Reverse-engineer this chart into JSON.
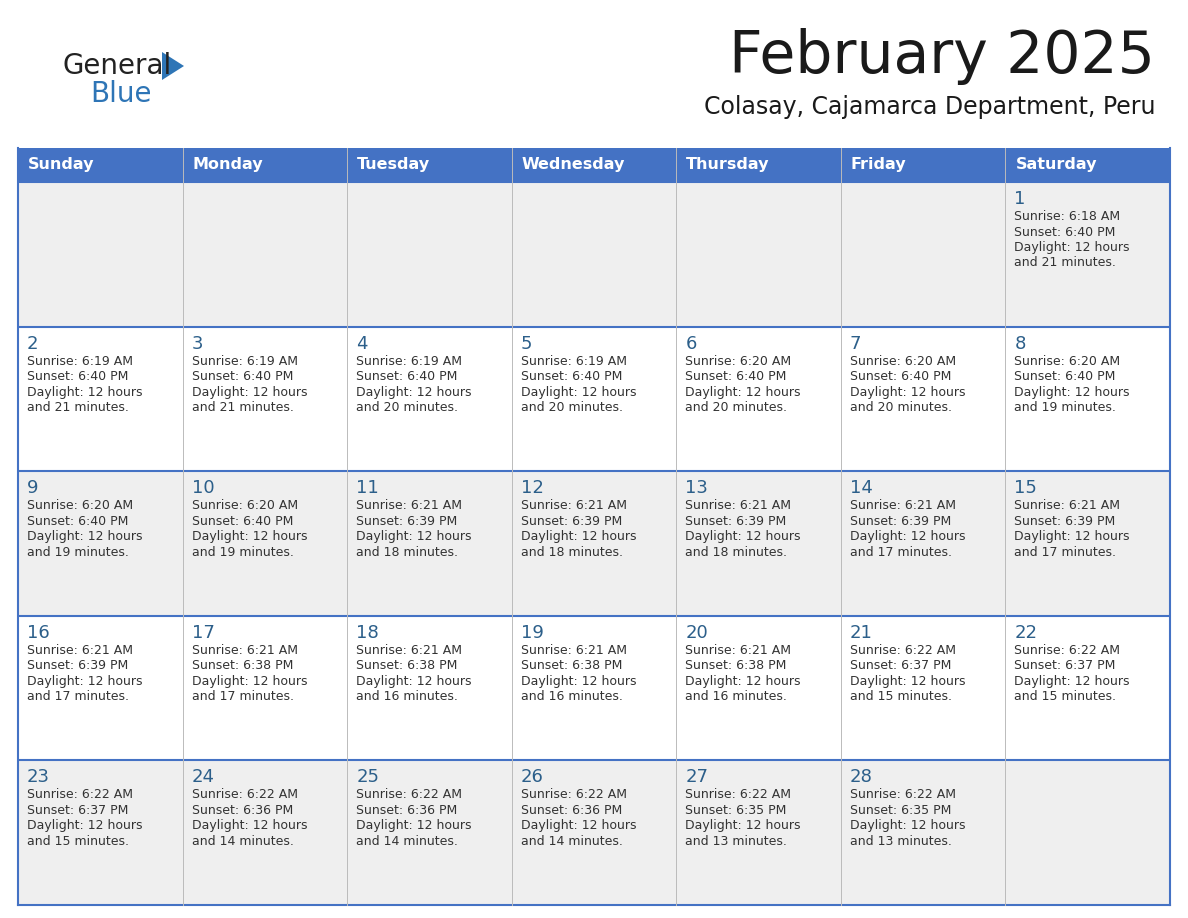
{
  "title": "February 2025",
  "subtitle": "Colasay, Cajamarca Department, Peru",
  "header_bg": "#4472C4",
  "header_text_color": "#FFFFFF",
  "cell_bg_odd": "#EFEFEF",
  "cell_bg_even": "#FFFFFF",
  "border_color": "#4472C4",
  "day_headers": [
    "Sunday",
    "Monday",
    "Tuesday",
    "Wednesday",
    "Thursday",
    "Friday",
    "Saturday"
  ],
  "title_color": "#1a1a1a",
  "subtitle_color": "#1a1a1a",
  "logo_general_color": "#222222",
  "logo_blue_color": "#2E75B6",
  "day_number_color": "#2c5f8a",
  "cell_text_color": "#333333",
  "calendar": [
    [
      null,
      null,
      null,
      null,
      null,
      null,
      {
        "day": 1,
        "sunrise": "6:18 AM",
        "sunset": "6:40 PM",
        "daylight": "12 hours",
        "daylight2": "and 21 minutes."
      }
    ],
    [
      {
        "day": 2,
        "sunrise": "6:19 AM",
        "sunset": "6:40 PM",
        "daylight": "12 hours",
        "daylight2": "and 21 minutes."
      },
      {
        "day": 3,
        "sunrise": "6:19 AM",
        "sunset": "6:40 PM",
        "daylight": "12 hours",
        "daylight2": "and 21 minutes."
      },
      {
        "day": 4,
        "sunrise": "6:19 AM",
        "sunset": "6:40 PM",
        "daylight": "12 hours",
        "daylight2": "and 20 minutes."
      },
      {
        "day": 5,
        "sunrise": "6:19 AM",
        "sunset": "6:40 PM",
        "daylight": "12 hours",
        "daylight2": "and 20 minutes."
      },
      {
        "day": 6,
        "sunrise": "6:20 AM",
        "sunset": "6:40 PM",
        "daylight": "12 hours",
        "daylight2": "and 20 minutes."
      },
      {
        "day": 7,
        "sunrise": "6:20 AM",
        "sunset": "6:40 PM",
        "daylight": "12 hours",
        "daylight2": "and 20 minutes."
      },
      {
        "day": 8,
        "sunrise": "6:20 AM",
        "sunset": "6:40 PM",
        "daylight": "12 hours",
        "daylight2": "and 19 minutes."
      }
    ],
    [
      {
        "day": 9,
        "sunrise": "6:20 AM",
        "sunset": "6:40 PM",
        "daylight": "12 hours",
        "daylight2": "and 19 minutes."
      },
      {
        "day": 10,
        "sunrise": "6:20 AM",
        "sunset": "6:40 PM",
        "daylight": "12 hours",
        "daylight2": "and 19 minutes."
      },
      {
        "day": 11,
        "sunrise": "6:21 AM",
        "sunset": "6:39 PM",
        "daylight": "12 hours",
        "daylight2": "and 18 minutes."
      },
      {
        "day": 12,
        "sunrise": "6:21 AM",
        "sunset": "6:39 PM",
        "daylight": "12 hours",
        "daylight2": "and 18 minutes."
      },
      {
        "day": 13,
        "sunrise": "6:21 AM",
        "sunset": "6:39 PM",
        "daylight": "12 hours",
        "daylight2": "and 18 minutes."
      },
      {
        "day": 14,
        "sunrise": "6:21 AM",
        "sunset": "6:39 PM",
        "daylight": "12 hours",
        "daylight2": "and 17 minutes."
      },
      {
        "day": 15,
        "sunrise": "6:21 AM",
        "sunset": "6:39 PM",
        "daylight": "12 hours",
        "daylight2": "and 17 minutes."
      }
    ],
    [
      {
        "day": 16,
        "sunrise": "6:21 AM",
        "sunset": "6:39 PM",
        "daylight": "12 hours",
        "daylight2": "and 17 minutes."
      },
      {
        "day": 17,
        "sunrise": "6:21 AM",
        "sunset": "6:38 PM",
        "daylight": "12 hours",
        "daylight2": "and 17 minutes."
      },
      {
        "day": 18,
        "sunrise": "6:21 AM",
        "sunset": "6:38 PM",
        "daylight": "12 hours",
        "daylight2": "and 16 minutes."
      },
      {
        "day": 19,
        "sunrise": "6:21 AM",
        "sunset": "6:38 PM",
        "daylight": "12 hours",
        "daylight2": "and 16 minutes."
      },
      {
        "day": 20,
        "sunrise": "6:21 AM",
        "sunset": "6:38 PM",
        "daylight": "12 hours",
        "daylight2": "and 16 minutes."
      },
      {
        "day": 21,
        "sunrise": "6:22 AM",
        "sunset": "6:37 PM",
        "daylight": "12 hours",
        "daylight2": "and 15 minutes."
      },
      {
        "day": 22,
        "sunrise": "6:22 AM",
        "sunset": "6:37 PM",
        "daylight": "12 hours",
        "daylight2": "and 15 minutes."
      }
    ],
    [
      {
        "day": 23,
        "sunrise": "6:22 AM",
        "sunset": "6:37 PM",
        "daylight": "12 hours",
        "daylight2": "and 15 minutes."
      },
      {
        "day": 24,
        "sunrise": "6:22 AM",
        "sunset": "6:36 PM",
        "daylight": "12 hours",
        "daylight2": "and 14 minutes."
      },
      {
        "day": 25,
        "sunrise": "6:22 AM",
        "sunset": "6:36 PM",
        "daylight": "12 hours",
        "daylight2": "and 14 minutes."
      },
      {
        "day": 26,
        "sunrise": "6:22 AM",
        "sunset": "6:36 PM",
        "daylight": "12 hours",
        "daylight2": "and 14 minutes."
      },
      {
        "day": 27,
        "sunrise": "6:22 AM",
        "sunset": "6:35 PM",
        "daylight": "12 hours",
        "daylight2": "and 13 minutes."
      },
      {
        "day": 28,
        "sunrise": "6:22 AM",
        "sunset": "6:35 PM",
        "daylight": "12 hours",
        "daylight2": "and 13 minutes."
      },
      null
    ]
  ]
}
